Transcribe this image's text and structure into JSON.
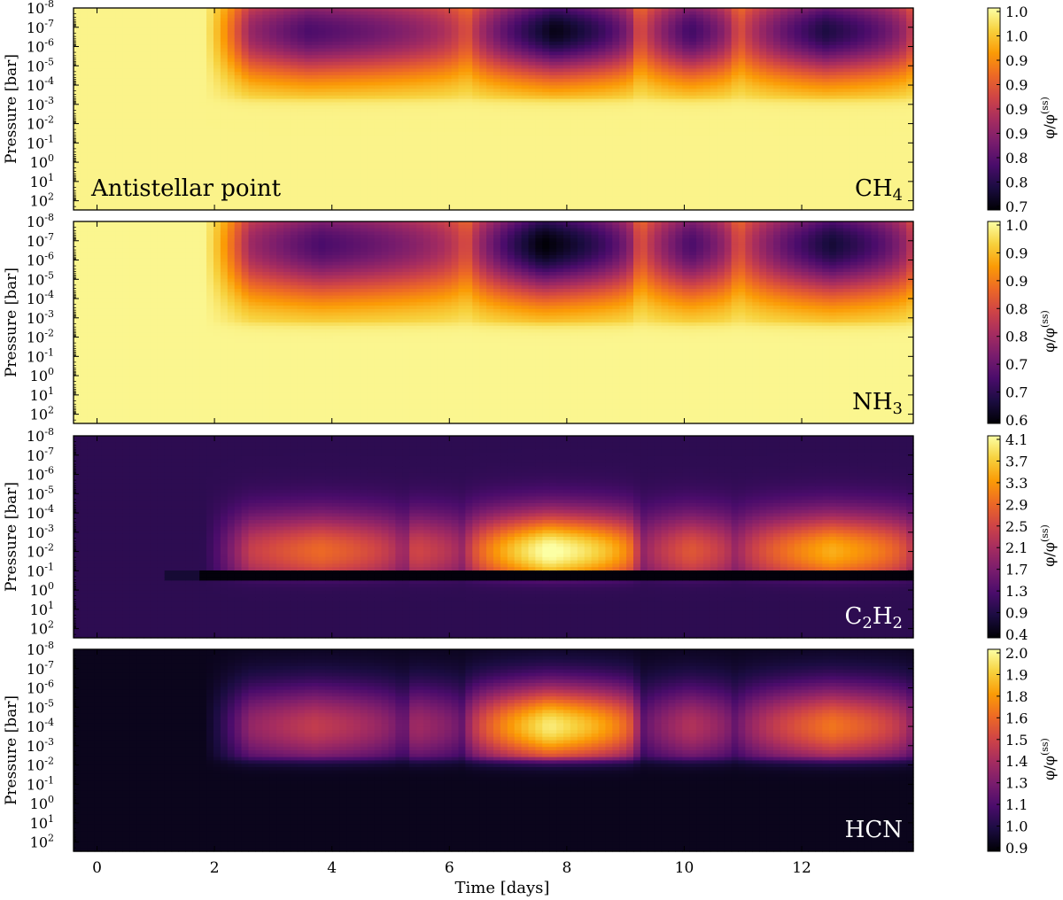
{
  "chart_data": {
    "type": "heatmap",
    "annotation": "Antistellar point",
    "xlabel": "Time [days]",
    "ylabel": "Pressure [bar]",
    "xlim": [
      -0.4,
      13.9
    ],
    "x_ticks": [
      0,
      2,
      4,
      6,
      8,
      10,
      12
    ],
    "y_scale": "log",
    "ylim_bar": [
      300,
      1e-08
    ],
    "y_ticks": [
      {
        "exp": "-8"
      },
      {
        "exp": "-7"
      },
      {
        "exp": "-6"
      },
      {
        "exp": "-5"
      },
      {
        "exp": "-4"
      },
      {
        "exp": "-3"
      },
      {
        "exp": "-2"
      },
      {
        "exp": "-1"
      },
      {
        "exp": "0"
      },
      {
        "exp": "1"
      },
      {
        "exp": "2"
      }
    ],
    "y_tick_base": "10",
    "colorbar_label": "φ/φ",
    "colorbar_label_sup": "(ss)",
    "colormap": "inferno",
    "colormap_stops": [
      "#000004",
      "#1b0c41",
      "#4a0c6b",
      "#781c6d",
      "#a52c60",
      "#cf4446",
      "#ed6925",
      "#fb9b06",
      "#f7d13d",
      "#fcffa4"
    ],
    "panels": [
      {
        "species": {
          "parts": [
            {
              "t": "CH"
            },
            {
              "t": "4",
              "sub": true
            }
          ]
        },
        "label_light": false,
        "colorbar_ticks": [
          "1.0",
          "1.0",
          "0.9",
          "0.9",
          "0.9",
          "0.9",
          "0.8",
          "0.8",
          "0.7"
        ],
        "range": [
          0.7,
          1.05
        ],
        "background": 1.04,
        "events": [
          {
            "t0": 1.8,
            "t1": 6.3,
            "peak": 3.6,
            "amp": -0.26
          },
          {
            "t0": 6.3,
            "t1": 9.2,
            "peak": 7.8,
            "amp": -0.33
          },
          {
            "t0": 9.2,
            "t1": 10.9,
            "peak": 10.1,
            "amp": -0.27
          },
          {
            "t0": 10.9,
            "t1": 13.9,
            "peak": 12.4,
            "amp": -0.3
          }
        ],
        "depth": {
          "center": -6.8,
          "width": 2.9,
          "floor": -3.4
        }
      },
      {
        "species": {
          "parts": [
            {
              "t": "NH"
            },
            {
              "t": "3",
              "sub": true
            }
          ]
        },
        "label_light": false,
        "colorbar_ticks": [
          "1.0",
          "0.9",
          "0.9",
          "0.8",
          "0.8",
          "0.7",
          "0.7",
          "0.6"
        ],
        "range": [
          0.6,
          1.05
        ],
        "background": 1.04,
        "events": [
          {
            "t0": 1.8,
            "t1": 6.3,
            "peak": 3.8,
            "amp": -0.34
          },
          {
            "t0": 6.3,
            "t1": 9.2,
            "peak": 7.6,
            "amp": -0.44
          },
          {
            "t0": 9.2,
            "t1": 10.9,
            "peak": 10.1,
            "amp": -0.34
          },
          {
            "t0": 10.9,
            "t1": 13.9,
            "peak": 12.5,
            "amp": -0.4
          }
        ],
        "depth": {
          "center": -6.8,
          "width": 3.3,
          "floor": -2.8
        }
      },
      {
        "species": {
          "parts": [
            {
              "t": "C"
            },
            {
              "t": "2",
              "sub": true
            },
            {
              "t": "H"
            },
            {
              "t": "2",
              "sub": true
            }
          ]
        },
        "label_light": true,
        "colorbar_ticks": [
          "4.1",
          "3.7",
          "3.3",
          "2.9",
          "2.5",
          "2.1",
          "1.7",
          "1.3",
          "0.9",
          "0.4"
        ],
        "range": [
          0.4,
          4.3
        ],
        "background": 1.0,
        "events": [
          {
            "t0": 1.8,
            "t1": 5.2,
            "peak": 3.8,
            "amp": 2.0
          },
          {
            "t0": 5.2,
            "t1": 6.3,
            "peak": 5.4,
            "amp": 1.6
          },
          {
            "t0": 6.3,
            "t1": 9.2,
            "peak": 7.7,
            "amp": 3.4
          },
          {
            "t0": 9.2,
            "t1": 10.9,
            "peak": 10.1,
            "amp": 1.8
          },
          {
            "t0": 10.9,
            "t1": 13.9,
            "peak": 12.5,
            "amp": 2.6
          }
        ],
        "depth": {
          "center": -2.0,
          "width": 2.4,
          "floor": -1.0
        },
        "dark_band": {
          "from": -1.0,
          "to": -0.5,
          "value": 0.45
        }
      },
      {
        "species": {
          "parts": [
            {
              "t": "HCN"
            }
          ]
        },
        "label_light": true,
        "colorbar_ticks": [
          "2.0",
          "1.9",
          "1.8",
          "1.6",
          "1.5",
          "1.4",
          "1.3",
          "1.1",
          "1.0",
          "0.9"
        ],
        "range": [
          0.9,
          2.05
        ],
        "background": 0.95,
        "events": [
          {
            "t0": 1.8,
            "t1": 5.2,
            "peak": 3.7,
            "amp": 0.55
          },
          {
            "t0": 5.2,
            "t1": 6.3,
            "peak": 5.4,
            "amp": 0.45
          },
          {
            "t0": 6.3,
            "t1": 9.2,
            "peak": 7.7,
            "amp": 1.05
          },
          {
            "t0": 9.2,
            "t1": 10.9,
            "peak": 10.1,
            "amp": 0.5
          },
          {
            "t0": 10.9,
            "t1": 13.9,
            "peak": 12.5,
            "amp": 0.75
          }
        ],
        "depth": {
          "center": -4.0,
          "width": 2.6,
          "floor": -2.4
        }
      }
    ]
  }
}
